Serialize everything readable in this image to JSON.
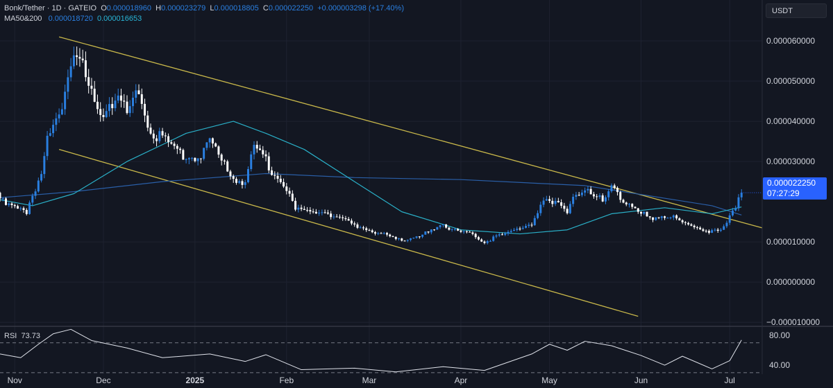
{
  "header": {
    "symbol": "Bonk/Tether · 1D · GATEIO",
    "o_label": "O",
    "open": "0.000018960",
    "h_label": "H",
    "high": "0.000023279",
    "l_label": "L",
    "low": "0.000018805",
    "c_label": "C",
    "close": "0.000022250",
    "change": "+0.000003298 (+17.40%)",
    "ma_label": "MA50&200",
    "ma50_value": "0.000018720",
    "ma200_value": "0.000016653"
  },
  "currency_button": "USDT",
  "last_price": {
    "value": "0.000022250",
    "countdown": "07:27:29"
  },
  "rsi_panel": {
    "label": "RSI",
    "value": "73.73"
  },
  "colors": {
    "background": "#131722",
    "candle_up": "#2a7fe0",
    "candle_down": "#ffffff",
    "trendline": "#c9b84a",
    "ma50": "#2ab0c8",
    "ma200": "#2a5fa8",
    "price_tag": "#2962ff"
  },
  "chart_data": [
    {
      "type": "candlestick",
      "title": "",
      "y_axis_ticks": [
        "0.000060000",
        "0.000050000",
        "0.000040000",
        "0.000030000",
        "0.000010000",
        "0.000000000",
        "−0.000010000"
      ],
      "ylim": [
        -1.1e-05,
        6.5e-05
      ],
      "x_axis_ticks": [
        "Nov",
        "Dec",
        "2025",
        "Feb",
        "Mar",
        "Apr",
        "May",
        "Jun",
        "Jul"
      ],
      "x_tick_dates": [
        "2024-11-01",
        "2024-12-01",
        "2025-01-01",
        "2025-02-01",
        "2025-03-01",
        "2025-04-01",
        "2025-05-01",
        "2025-06-01",
        "2025-07-01"
      ],
      "xlim": [
        "2024-10-27",
        "2025-07-12"
      ],
      "closes": [
        {
          "date": "2024-10-27",
          "close": 2.05e-05
        },
        {
          "date": "2024-11-01",
          "close": 1.95e-05
        },
        {
          "date": "2024-11-05",
          "close": 1.75e-05
        },
        {
          "date": "2024-11-07",
          "close": 2.05e-05
        },
        {
          "date": "2024-11-10",
          "close": 2.6e-05
        },
        {
          "date": "2024-11-12",
          "close": 3.6e-05
        },
        {
          "date": "2024-11-14",
          "close": 4e-05
        },
        {
          "date": "2024-11-17",
          "close": 4.5e-05
        },
        {
          "date": "2024-11-19",
          "close": 5.2e-05
        },
        {
          "date": "2024-11-21",
          "close": 5.6e-05
        },
        {
          "date": "2024-11-24",
          "close": 5.3e-05
        },
        {
          "date": "2024-11-27",
          "close": 4.6e-05
        },
        {
          "date": "2024-12-01",
          "close": 4.3e-05
        },
        {
          "date": "2024-12-05",
          "close": 4.6e-05
        },
        {
          "date": "2024-12-09",
          "close": 4.2e-05
        },
        {
          "date": "2024-12-13",
          "close": 4.7e-05
        },
        {
          "date": "2024-12-17",
          "close": 3.7e-05
        },
        {
          "date": "2024-12-21",
          "close": 3.6e-05
        },
        {
          "date": "2024-12-25",
          "close": 3.3e-05
        },
        {
          "date": "2024-12-29",
          "close": 3.1e-05
        },
        {
          "date": "2025-01-02",
          "close": 3.1e-05
        },
        {
          "date": "2025-01-06",
          "close": 3.5e-05
        },
        {
          "date": "2025-01-10",
          "close": 3e-05
        },
        {
          "date": "2025-01-14",
          "close": 2.6e-05
        },
        {
          "date": "2025-01-18",
          "close": 2.5e-05
        },
        {
          "date": "2025-01-21",
          "close": 3.3e-05
        },
        {
          "date": "2025-01-25",
          "close": 3e-05
        },
        {
          "date": "2025-01-29",
          "close": 2.6e-05
        },
        {
          "date": "2025-02-02",
          "close": 2.2e-05
        },
        {
          "date": "2025-02-04",
          "close": 1.8e-05
        },
        {
          "date": "2025-02-08",
          "close": 1.75e-05
        },
        {
          "date": "2025-02-13",
          "close": 1.78e-05
        },
        {
          "date": "2025-02-18",
          "close": 1.6e-05
        },
        {
          "date": "2025-02-24",
          "close": 1.4e-05
        },
        {
          "date": "2025-03-01",
          "close": 1.3e-05
        },
        {
          "date": "2025-03-05",
          "close": 1.2e-05
        },
        {
          "date": "2025-03-10",
          "close": 1.05e-05
        },
        {
          "date": "2025-03-15",
          "close": 1.1e-05
        },
        {
          "date": "2025-03-20",
          "close": 1.2e-05
        },
        {
          "date": "2025-03-26",
          "close": 1.4e-05
        },
        {
          "date": "2025-04-01",
          "close": 1.3e-05
        },
        {
          "date": "2025-04-05",
          "close": 1.15e-05
        },
        {
          "date": "2025-04-09",
          "close": 9.5e-06
        },
        {
          "date": "2025-04-13",
          "close": 1.2e-05
        },
        {
          "date": "2025-04-17",
          "close": 1.25e-05
        },
        {
          "date": "2025-04-21",
          "close": 1.3e-05
        },
        {
          "date": "2025-04-25",
          "close": 1.4e-05
        },
        {
          "date": "2025-04-28",
          "close": 2e-05
        },
        {
          "date": "2025-05-01",
          "close": 2.1e-05
        },
        {
          "date": "2025-05-04",
          "close": 1.9e-05
        },
        {
          "date": "2025-05-07",
          "close": 1.7e-05
        },
        {
          "date": "2025-05-10",
          "close": 2.2e-05
        },
        {
          "date": "2025-05-13",
          "close": 2.4e-05
        },
        {
          "date": "2025-05-16",
          "close": 2.2e-05
        },
        {
          "date": "2025-05-19",
          "close": 2e-05
        },
        {
          "date": "2025-05-22",
          "close": 2.3e-05
        },
        {
          "date": "2025-05-25",
          "close": 2.1e-05
        },
        {
          "date": "2025-05-28",
          "close": 2e-05
        },
        {
          "date": "2025-06-01",
          "close": 1.75e-05
        },
        {
          "date": "2025-06-05",
          "close": 1.5e-05
        },
        {
          "date": "2025-06-09",
          "close": 1.65e-05
        },
        {
          "date": "2025-06-12",
          "close": 1.7e-05
        },
        {
          "date": "2025-06-15",
          "close": 1.5e-05
        },
        {
          "date": "2025-06-18",
          "close": 1.4e-05
        },
        {
          "date": "2025-06-22",
          "close": 1.25e-05
        },
        {
          "date": "2025-06-25",
          "close": 1.3e-05
        },
        {
          "date": "2025-06-28",
          "close": 1.35e-05
        },
        {
          "date": "2025-07-01",
          "close": 1.6e-05
        },
        {
          "date": "2025-07-03",
          "close": 1.8e-05
        },
        {
          "date": "2025-07-05",
          "close": 2.225e-05
        }
      ],
      "ma50": [
        {
          "date": "2024-10-27",
          "value": 2.05e-05
        },
        {
          "date": "2024-11-07",
          "value": 1.9e-05
        },
        {
          "date": "2024-11-21",
          "value": 2.2e-05
        },
        {
          "date": "2024-12-09",
          "value": 3e-05
        },
        {
          "date": "2024-12-29",
          "value": 3.7e-05
        },
        {
          "date": "2025-01-14",
          "value": 4e-05
        },
        {
          "date": "2025-01-25",
          "value": 3.7e-05
        },
        {
          "date": "2025-02-07",
          "value": 3.3e-05
        },
        {
          "date": "2025-02-24",
          "value": 2.5e-05
        },
        {
          "date": "2025-03-12",
          "value": 1.75e-05
        },
        {
          "date": "2025-04-01",
          "value": 1.3e-05
        },
        {
          "date": "2025-04-21",
          "value": 1.2e-05
        },
        {
          "date": "2025-05-07",
          "value": 1.3e-05
        },
        {
          "date": "2025-05-22",
          "value": 1.7e-05
        },
        {
          "date": "2025-06-09",
          "value": 1.85e-05
        },
        {
          "date": "2025-06-25",
          "value": 1.7e-05
        },
        {
          "date": "2025-07-05",
          "value": 1.87e-05
        }
      ],
      "ma200": [
        {
          "date": "2024-10-27",
          "value": 2.1e-05
        },
        {
          "date": "2024-11-21",
          "value": 2.25e-05
        },
        {
          "date": "2024-12-21",
          "value": 2.5e-05
        },
        {
          "date": "2025-01-25",
          "value": 2.7e-05
        },
        {
          "date": "2025-02-24",
          "value": 2.6e-05
        },
        {
          "date": "2025-04-01",
          "value": 2.55e-05
        },
        {
          "date": "2025-05-13",
          "value": 2.4e-05
        },
        {
          "date": "2025-06-25",
          "value": 1.9e-05
        },
        {
          "date": "2025-07-05",
          "value": 1.67e-05
        }
      ],
      "trendlines": [
        {
          "from": {
            "date": "2024-11-16",
            "value": 6.1e-05
          },
          "to": {
            "date": "2025-07-12",
            "value": 1.35e-05
          }
        },
        {
          "from": {
            "date": "2024-11-16",
            "value": 3.3e-05
          },
          "to": {
            "date": "2025-05-31",
            "value": -8.5e-06
          }
        }
      ],
      "grid": true
    },
    {
      "type": "line",
      "title": "",
      "name": "RSI",
      "y_axis_ticks": [
        "80.00",
        "40.00"
      ],
      "ylim": [
        28,
        92
      ],
      "dashed_levels": [
        70,
        30
      ],
      "values": [
        {
          "date": "2024-10-27",
          "value": 55
        },
        {
          "date": "2024-11-03",
          "value": 50
        },
        {
          "date": "2024-11-09",
          "value": 68
        },
        {
          "date": "2024-11-14",
          "value": 82
        },
        {
          "date": "2024-11-20",
          "value": 88
        },
        {
          "date": "2024-11-27",
          "value": 73
        },
        {
          "date": "2024-12-09",
          "value": 63
        },
        {
          "date": "2024-12-21",
          "value": 50
        },
        {
          "date": "2025-01-06",
          "value": 55
        },
        {
          "date": "2025-01-18",
          "value": 45
        },
        {
          "date": "2025-01-25",
          "value": 54
        },
        {
          "date": "2025-02-06",
          "value": 34
        },
        {
          "date": "2025-02-24",
          "value": 36
        },
        {
          "date": "2025-03-10",
          "value": 31
        },
        {
          "date": "2025-03-26",
          "value": 38
        },
        {
          "date": "2025-04-09",
          "value": 33
        },
        {
          "date": "2025-04-25",
          "value": 55
        },
        {
          "date": "2025-05-01",
          "value": 68
        },
        {
          "date": "2025-05-07",
          "value": 60
        },
        {
          "date": "2025-05-13",
          "value": 72
        },
        {
          "date": "2025-05-22",
          "value": 66
        },
        {
          "date": "2025-06-01",
          "value": 53
        },
        {
          "date": "2025-06-09",
          "value": 40
        },
        {
          "date": "2025-06-15",
          "value": 52
        },
        {
          "date": "2025-06-25",
          "value": 35
        },
        {
          "date": "2025-07-01",
          "value": 46
        },
        {
          "date": "2025-07-05",
          "value": 73.73
        }
      ]
    }
  ]
}
